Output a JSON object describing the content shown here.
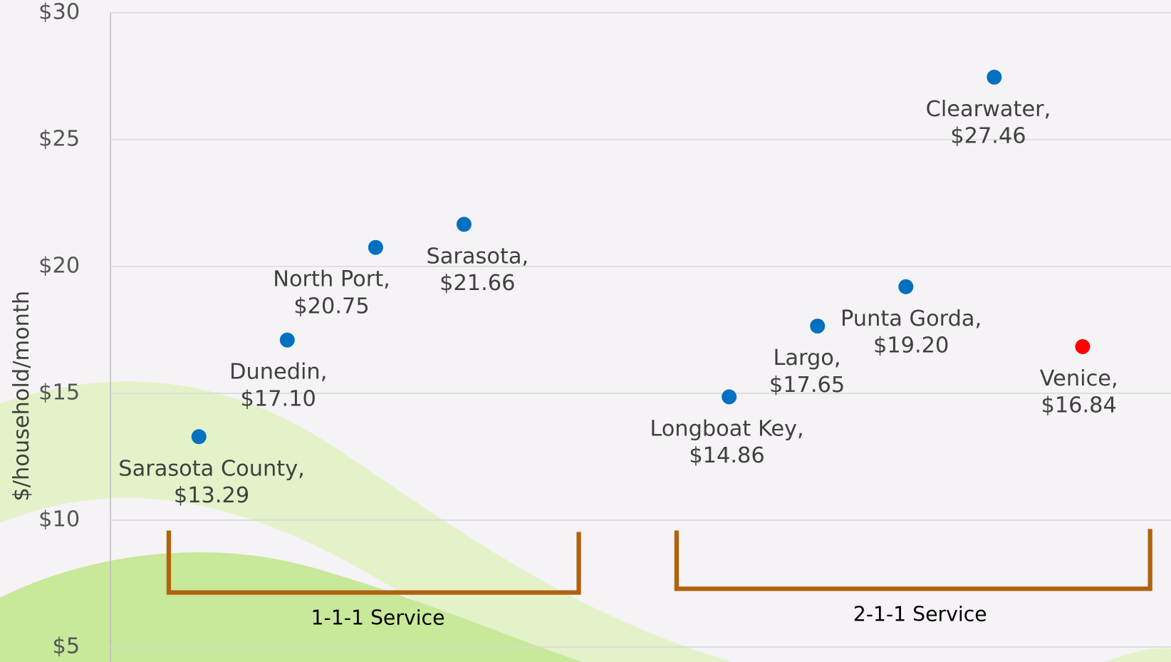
{
  "chart_data": {
    "type": "scatter",
    "y_label": "$/household/month",
    "x": [
      1,
      2,
      3,
      4,
      7,
      8,
      9,
      10,
      11
    ],
    "xlim": [
      0,
      12
    ],
    "categories": [
      "Sarasota County,",
      "Dunedin,",
      "North Port,",
      "Sarasota,",
      "Longboat Key,",
      "Largo,",
      "Punta Gorda,",
      "Clearwater,",
      "Venice,"
    ],
    "values": [
      13.29,
      17.1,
      20.75,
      21.66,
      14.86,
      17.65,
      19.2,
      27.46,
      16.84
    ],
    "value_labels": [
      "$13.29",
      "$17.10",
      "$20.75",
      "$21.66",
      "$14.86",
      "$17.65",
      "$19.20",
      "$27.46",
      "$16.84"
    ],
    "colors": [
      "#0070c0",
      "#0070c0",
      "#0070c0",
      "#0070c0",
      "#0070c0",
      "#0070c0",
      "#0070c0",
      "#0070c0",
      "#ff0000"
    ],
    "ylim": [
      4.41,
      30.5
    ],
    "yticks": [
      {
        "value": 5,
        "label": "$5"
      },
      {
        "value": 10,
        "label": "$10"
      },
      {
        "value": 15,
        "label": "$15"
      },
      {
        "value": 20,
        "label": "$20"
      },
      {
        "value": 25,
        "label": "$25"
      },
      {
        "value": 30,
        "label": "$30"
      }
    ],
    "grid": true,
    "annotations": [
      "1-1-1 Service",
      "2-1-1 Service"
    ]
  }
}
